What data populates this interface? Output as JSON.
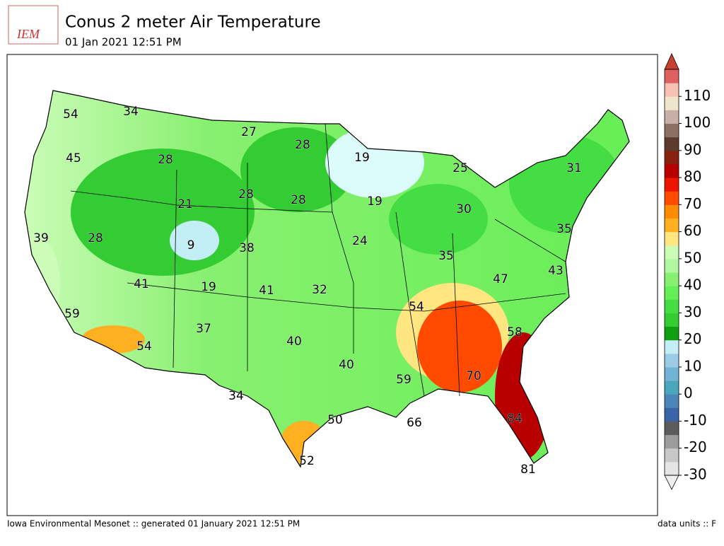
{
  "header": {
    "logo": "IEM",
    "title": "Conus 2 meter Air Temperature",
    "subtitle": "01 Jan 2021 12:51 PM"
  },
  "map": {
    "labels": [
      54,
      34,
      27,
      28,
      19,
      25,
      31,
      45,
      28,
      21,
      28,
      28,
      19,
      30,
      39,
      28,
      9,
      38,
      24,
      35,
      35,
      41,
      19,
      41,
      32,
      47,
      43,
      59,
      37,
      54,
      58,
      54,
      40,
      40,
      59,
      70,
      34,
      50,
      66,
      84,
      52,
      81
    ]
  },
  "colorbar": {
    "ticks": [
      -30,
      -20,
      -10,
      0,
      10,
      20,
      30,
      40,
      50,
      60,
      70,
      80,
      90,
      100,
      110
    ],
    "colors": [
      "#e5e5e5",
      "#c8c8c8",
      "#9c9c9c",
      "#5c5c5c",
      "#3b64a8",
      "#4a86b8",
      "#4aa6bd",
      "#72b4d6",
      "#9ccbe6",
      "#c4eef6",
      "#109f10",
      "#33cc33",
      "#44dd44",
      "#66ee55",
      "#88f070",
      "#b0f7a0",
      "#ccfcb8",
      "#ffe680",
      "#ffb020",
      "#ff8c00",
      "#ff4a00",
      "#ee1500",
      "#b80000",
      "#8a2010",
      "#5c3a2c",
      "#8c7064",
      "#c8b0a8",
      "#efe4cc",
      "#f8c0b0",
      "#e06060"
    ],
    "over_color": "#c84030",
    "under_color": "#eeeeee"
  },
  "footer": {
    "left": "Iowa Environmental Mesonet :: generated 01 January 2021 12:51 PM",
    "right": "data units :: F"
  }
}
